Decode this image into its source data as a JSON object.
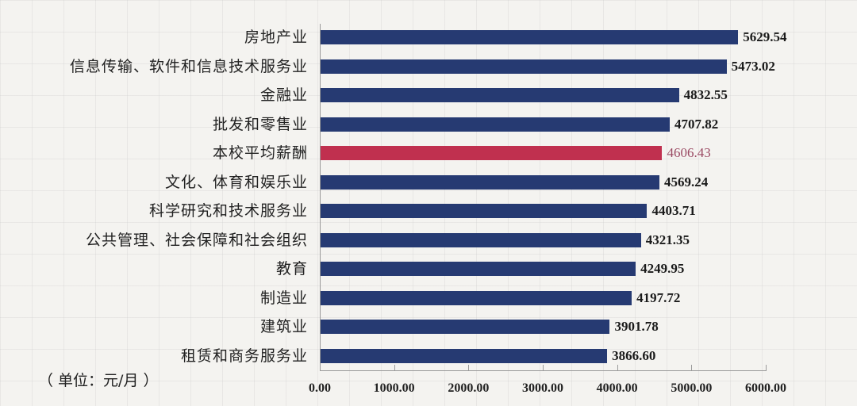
{
  "chart_data": {
    "type": "bar",
    "orientation": "horizontal",
    "title": "",
    "unit_note": "（ 单位：元/月 ）",
    "xlabel": "",
    "ylabel": "",
    "xlim": [
      0,
      6000
    ],
    "x_ticks": [
      "0.00",
      "1000.00",
      "2000.00",
      "3000.00",
      "4000.00",
      "5000.00",
      "6000.00"
    ],
    "grid": false,
    "legend": null,
    "categories": [
      "房地产业",
      "信息传输、软件和信息技术服务业",
      "金融业",
      "批发和零售业",
      "本校平均薪酬",
      "文化、体育和娱乐业",
      "科学研究和技术服务业",
      "公共管理、社会保障和社会组织",
      "教育",
      "制造业",
      "建筑业",
      "租赁和商务服务业"
    ],
    "values": [
      5629.54,
      5473.02,
      4832.55,
      4707.82,
      4606.43,
      4569.24,
      4403.71,
      4321.35,
      4249.95,
      4197.72,
      3901.78,
      3866.6
    ],
    "value_labels": [
      "5629.54",
      "5473.02",
      "4832.55",
      "4707.82",
      "4606.43",
      "4569.24",
      "4403.71",
      "4321.35",
      "4249.95",
      "4197.72",
      "3901.78",
      "3866.60"
    ],
    "highlight_index": 4,
    "colors": {
      "bar": "#263a72",
      "highlight_bar": "#c0304f",
      "highlight_label": "#9a4a63",
      "label": "#1a1a1a",
      "axis": "#9a9a9a"
    }
  }
}
